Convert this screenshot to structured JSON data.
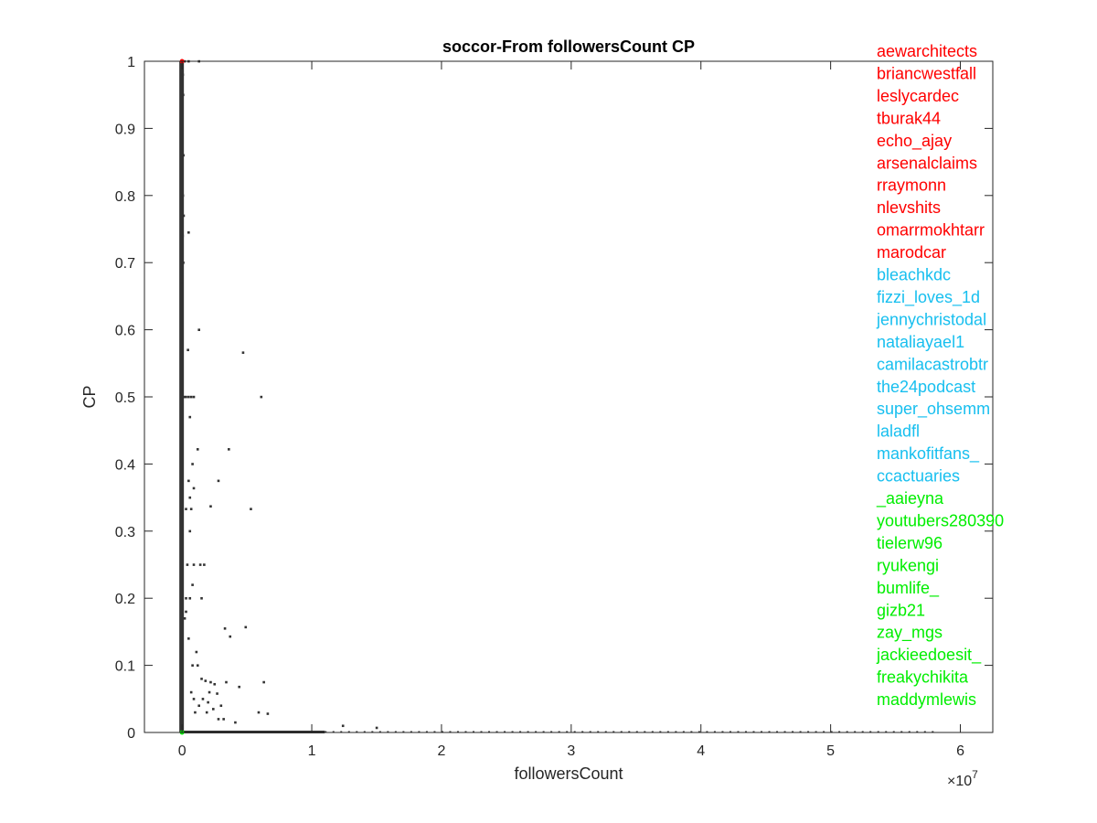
{
  "chart_data": {
    "type": "scatter",
    "title": "soccor-From followersCount CP",
    "xlabel": "followersCount",
    "ylabel": "CP",
    "x_multiplier_base": "×10",
    "x_multiplier_exp": "7",
    "xlim": [
      -2900000,
      62500000
    ],
    "ylim": [
      0,
      1
    ],
    "x_ticks": [
      0,
      10000000,
      20000000,
      30000000,
      40000000,
      50000000,
      60000000
    ],
    "x_tick_labels": [
      "0",
      "1",
      "2",
      "3",
      "4",
      "5",
      "6"
    ],
    "y_ticks": [
      0,
      0.1,
      0.2,
      0.3,
      0.4,
      0.5,
      0.6,
      0.7,
      0.8,
      0.9,
      1
    ],
    "y_tick_labels": [
      "0",
      "0.1",
      "0.2",
      "0.3",
      "0.4",
      "0.5",
      "0.6",
      "0.7",
      "0.8",
      "0.9",
      "1"
    ],
    "grid": false,
    "box": true,
    "colors": {
      "points": "#333333",
      "top_group": "#ff0000",
      "middle_group": "#17bfef",
      "bottom_group": "#00ee00",
      "axis": "#262626"
    },
    "points": [
      [
        1300000,
        1.0
      ],
      [
        200000,
        1.0
      ],
      [
        500000,
        1.0
      ],
      [
        50000,
        0.98
      ],
      [
        80000,
        0.95
      ],
      [
        30000,
        0.9
      ],
      [
        100000,
        0.86
      ],
      [
        60000,
        0.8
      ],
      [
        120000,
        0.77
      ],
      [
        40000,
        0.74
      ],
      [
        500000,
        0.745
      ],
      [
        90000,
        0.7
      ],
      [
        30000,
        0.67
      ],
      [
        1300000,
        0.6
      ],
      [
        4700000,
        0.566
      ],
      [
        450000,
        0.57
      ],
      [
        6100000,
        0.5
      ],
      [
        500000,
        0.5
      ],
      [
        700000,
        0.5
      ],
      [
        900000,
        0.5
      ],
      [
        300000,
        0.5
      ],
      [
        150000,
        0.5
      ],
      [
        600000,
        0.47
      ],
      [
        1200000,
        0.422
      ],
      [
        3600000,
        0.422
      ],
      [
        800000,
        0.4
      ],
      [
        500000,
        0.375
      ],
      [
        2800000,
        0.375
      ],
      [
        900000,
        0.364
      ],
      [
        600000,
        0.35
      ],
      [
        2200000,
        0.337
      ],
      [
        5300000,
        0.333
      ],
      [
        300000,
        0.333
      ],
      [
        700000,
        0.333
      ],
      [
        600000,
        0.3
      ],
      [
        1400000,
        0.25
      ],
      [
        1700000,
        0.25
      ],
      [
        900000,
        0.25
      ],
      [
        400000,
        0.25
      ],
      [
        800000,
        0.22
      ],
      [
        300000,
        0.2
      ],
      [
        600000,
        0.2
      ],
      [
        1500000,
        0.2
      ],
      [
        300000,
        0.18
      ],
      [
        200000,
        0.17
      ],
      [
        3300000,
        0.155
      ],
      [
        4900000,
        0.157
      ],
      [
        3700000,
        0.143
      ],
      [
        500000,
        0.14
      ],
      [
        1100000,
        0.12
      ],
      [
        800000,
        0.1
      ],
      [
        1200000,
        0.1
      ],
      [
        1500000,
        0.08
      ],
      [
        1800000,
        0.077
      ],
      [
        2200000,
        0.075
      ],
      [
        2500000,
        0.072
      ],
      [
        3400000,
        0.075
      ],
      [
        6300000,
        0.075
      ],
      [
        4400000,
        0.068
      ],
      [
        2100000,
        0.06
      ],
      [
        2700000,
        0.058
      ],
      [
        1600000,
        0.05
      ],
      [
        2000000,
        0.045
      ],
      [
        3000000,
        0.04
      ],
      [
        2400000,
        0.035
      ],
      [
        1900000,
        0.03
      ],
      [
        5900000,
        0.03
      ],
      [
        6600000,
        0.028
      ],
      [
        2800000,
        0.02
      ],
      [
        3200000,
        0.02
      ],
      [
        4100000,
        0.015
      ],
      [
        12400000,
        0.01
      ],
      [
        15000000,
        0.007
      ],
      [
        1000000,
        0.03
      ],
      [
        1300000,
        0.04
      ],
      [
        700000,
        0.06
      ],
      [
        900000,
        0.05
      ]
    ],
    "annotations": [
      {
        "text": "aewarchitects",
        "group": "top"
      },
      {
        "text": "briancwestfall",
        "group": "top"
      },
      {
        "text": "leslycardec",
        "group": "top"
      },
      {
        "text": "tburak44",
        "group": "top"
      },
      {
        "text": "echo_ajay",
        "group": "top"
      },
      {
        "text": "arsenalclaims",
        "group": "top"
      },
      {
        "text": "rraymonn",
        "group": "top"
      },
      {
        "text": "nlevshits",
        "group": "top"
      },
      {
        "text": "omarrmokhtarr",
        "group": "top"
      },
      {
        "text": "marodcar",
        "group": "top"
      },
      {
        "text": "bleachkdc",
        "group": "middle"
      },
      {
        "text": "fizzi_loves_1d",
        "group": "middle"
      },
      {
        "text": "jennychristodal",
        "group": "middle"
      },
      {
        "text": "nataliayael1",
        "group": "middle"
      },
      {
        "text": "camilacastrobtr",
        "group": "middle"
      },
      {
        "text": "the24podcast",
        "group": "middle"
      },
      {
        "text": "super_ohsemm",
        "group": "middle"
      },
      {
        "text": "laladfl",
        "group": "middle"
      },
      {
        "text": "mankofitfans_",
        "group": "middle"
      },
      {
        "text": "ccactuaries",
        "group": "middle"
      },
      {
        "text": "_aaieyna",
        "group": "bottom"
      },
      {
        "text": "youtubers280390",
        "group": "bottom"
      },
      {
        "text": "tielerw96",
        "group": "bottom"
      },
      {
        "text": "ryukengi",
        "group": "bottom"
      },
      {
        "text": "bumlife_",
        "group": "bottom"
      },
      {
        "text": "gizb21",
        "group": "bottom"
      },
      {
        "text": "zay_mgs",
        "group": "bottom"
      },
      {
        "text": "jackieedoesit_",
        "group": "bottom"
      },
      {
        "text": "freakychikita",
        "group": "bottom"
      },
      {
        "text": "maddymlewis",
        "group": "bottom"
      }
    ]
  }
}
